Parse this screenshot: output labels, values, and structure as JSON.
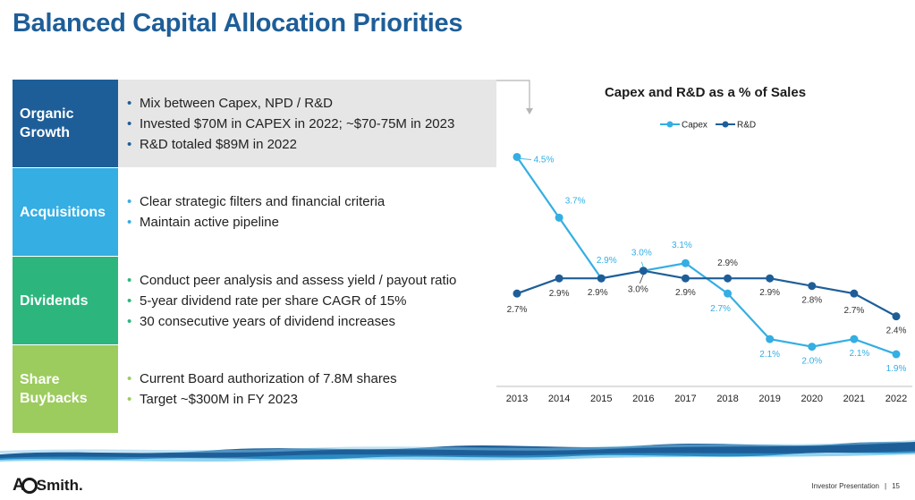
{
  "page": {
    "title": "Balanced Capital Allocation Priorities",
    "footer_label": "Investor Presentation",
    "footer_separator": "|",
    "page_number": "15"
  },
  "logo": {
    "text_ao": "A",
    "text_smith": "Smith."
  },
  "rows": [
    {
      "label": "Organic Growth",
      "bullets": [
        "Mix between Capex, NPD / R&D",
        "Invested $70M in CAPEX in 2022; ~$70-75M in 2023",
        "R&D totaled $89M in 2022"
      ]
    },
    {
      "label": "Acquisitions",
      "bullets": [
        "Clear strategic filters and financial criteria",
        "Maintain active pipeline"
      ]
    },
    {
      "label": "Dividends",
      "bullets": [
        "Conduct peer analysis and assess yield / payout ratio",
        "5-year dividend rate per share CAGR of 15%",
        "30 consecutive years of dividend increases"
      ]
    },
    {
      "label": "Share Buybacks",
      "bullets": [
        "Current Board authorization of 7.8M shares",
        "Target ~$300M in FY 2023"
      ]
    }
  ],
  "chart_data": {
    "type": "line",
    "title": "Capex and R&D as a % of Sales",
    "xlabel": "",
    "ylabel": "",
    "ylim": [
      1.5,
      4.8
    ],
    "grid": false,
    "legend": "top-center",
    "categories": [
      "2013",
      "2014",
      "2015",
      "2016",
      "2017",
      "2018",
      "2019",
      "2020",
      "2021",
      "2022"
    ],
    "series": [
      {
        "name": "Capex",
        "color": "#34aee3",
        "values": [
          4.5,
          3.7,
          2.9,
          3.0,
          3.1,
          2.7,
          2.1,
          2.0,
          2.1,
          1.9
        ],
        "labels": [
          "4.5%",
          "3.7%",
          "2.9%",
          "3.0%",
          "3.1%",
          "2.7%",
          "2.1%",
          "2.0%",
          "2.1%",
          "1.9%"
        ]
      },
      {
        "name": "R&D",
        "color": "#1e5e98",
        "values": [
          2.7,
          2.9,
          2.9,
          3.0,
          2.9,
          2.9,
          2.9,
          2.8,
          2.7,
          2.4
        ],
        "labels": [
          "2.7%",
          "2.9%",
          "2.9%",
          "3.0%",
          "2.9%",
          "2.9%",
          "2.9%",
          "2.8%",
          "2.7%",
          "2.4%"
        ]
      }
    ]
  }
}
